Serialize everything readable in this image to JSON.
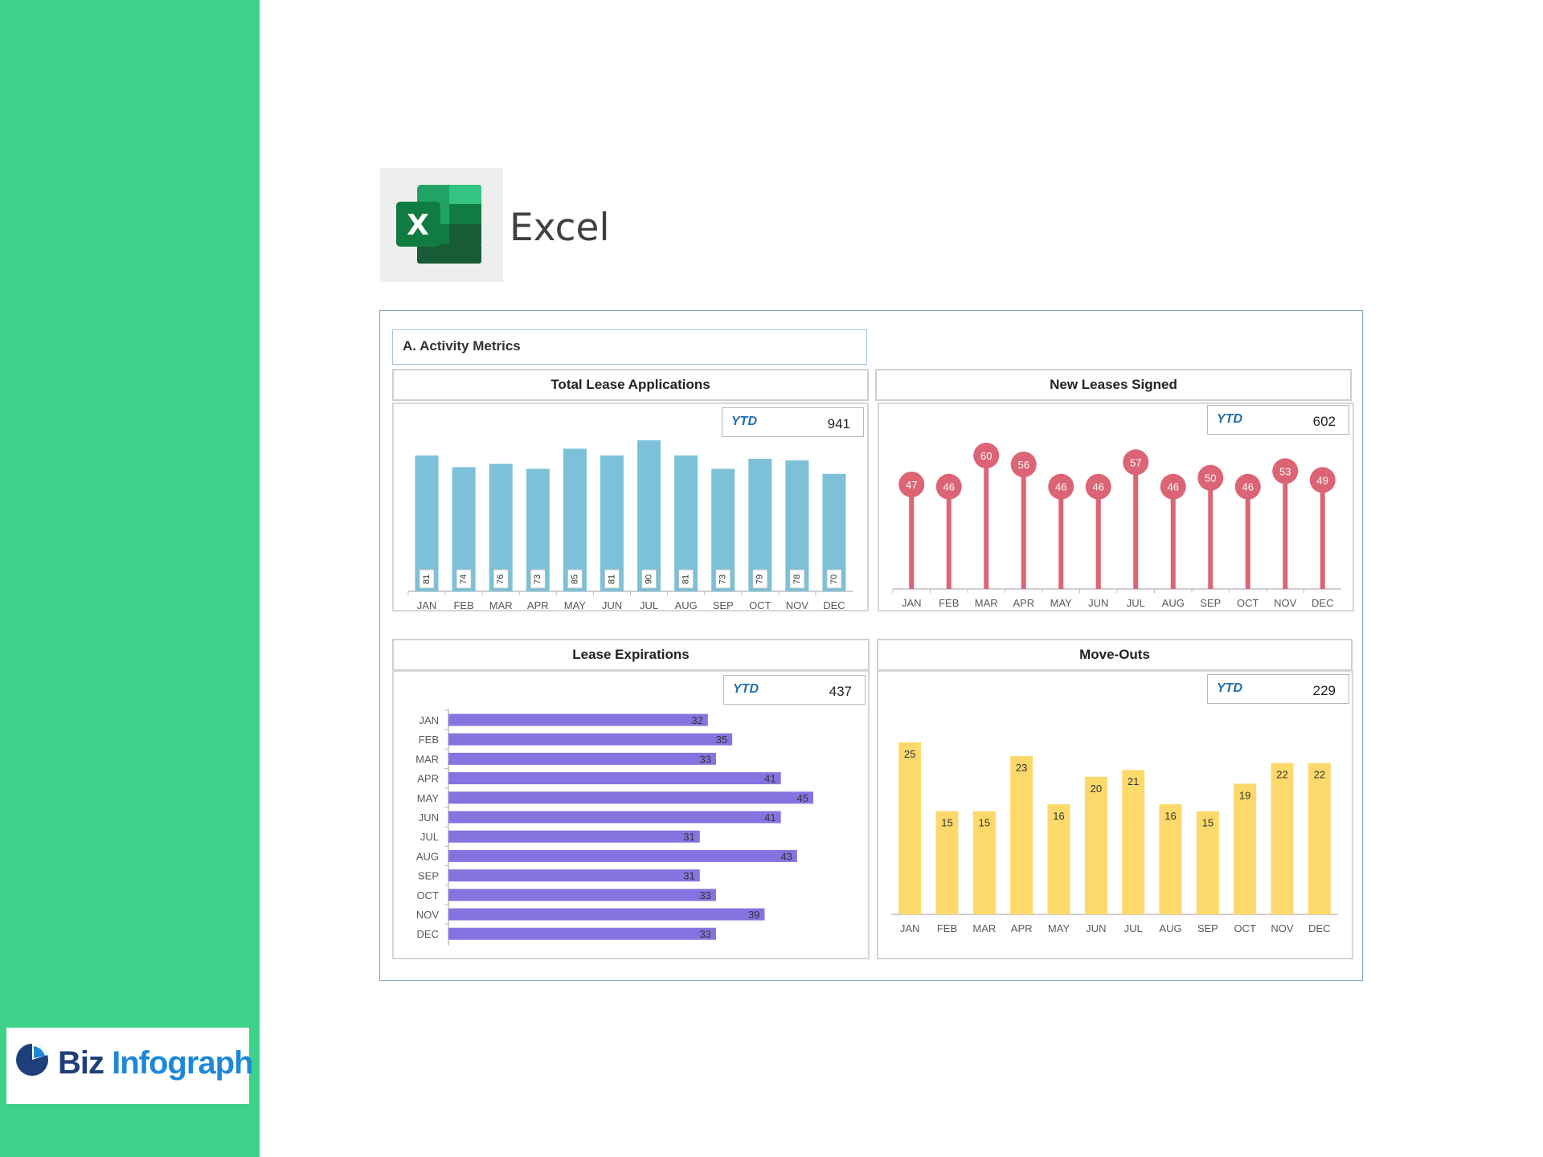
{
  "app": {
    "title": "Excel",
    "icon": "excel-icon",
    "icon_letter": "X"
  },
  "brand": {
    "name_part1": "Biz",
    "name_part2": "Infograph",
    "icon": "pie-logo-icon"
  },
  "colors": {
    "sidebar": "#3dd18a",
    "applications": "#7cc1d8",
    "leases_signed": "#db6475",
    "expirations": "#8574e0",
    "move_outs": "#fdd96b"
  },
  "dashboard": {
    "section_title": "A. Activity Metrics",
    "ytd_label": "YTD"
  },
  "chart_data": [
    {
      "id": "applications",
      "type": "bar",
      "title": "Total Lease Applications",
      "ytd": "941",
      "categories": [
        "JAN",
        "FEB",
        "MAR",
        "APR",
        "MAY",
        "JUN",
        "JUL",
        "AUG",
        "SEP",
        "OCT",
        "NOV",
        "DEC"
      ],
      "values": [
        81,
        74,
        76,
        73,
        85,
        81,
        90,
        81,
        73,
        79,
        78,
        70
      ],
      "orientation": "vertical",
      "data_labels": "inside-base-rotated",
      "grid": false
    },
    {
      "id": "leases_signed",
      "type": "scatter",
      "title": "New Leases Signed",
      "ytd": "602",
      "categories": [
        "JAN",
        "FEB",
        "MAR",
        "APR",
        "MAY",
        "JUN",
        "JUL",
        "AUG",
        "SEP",
        "OCT",
        "NOV",
        "DEC"
      ],
      "values": [
        47,
        46,
        60,
        56,
        46,
        46,
        57,
        46,
        50,
        46,
        53,
        49
      ],
      "style": "lollipop",
      "grid": false
    },
    {
      "id": "expirations",
      "type": "bar",
      "title": "Lease Expirations",
      "ytd": "437",
      "categories": [
        "JAN",
        "FEB",
        "MAR",
        "APR",
        "MAY",
        "JUN",
        "JUL",
        "AUG",
        "SEP",
        "OCT",
        "NOV",
        "DEC"
      ],
      "values": [
        32,
        35,
        33,
        41,
        45,
        41,
        31,
        43,
        31,
        33,
        39,
        33
      ],
      "orientation": "horizontal",
      "grid": false
    },
    {
      "id": "move_outs",
      "type": "bar",
      "title": "Move-Outs",
      "ytd": "229",
      "categories": [
        "JAN",
        "FEB",
        "MAR",
        "APR",
        "MAY",
        "JUN",
        "JUL",
        "AUG",
        "SEP",
        "OCT",
        "NOV",
        "DEC"
      ],
      "values": [
        25,
        15,
        15,
        23,
        16,
        20,
        21,
        16,
        15,
        19,
        22,
        22
      ],
      "orientation": "vertical",
      "grid": false
    }
  ]
}
